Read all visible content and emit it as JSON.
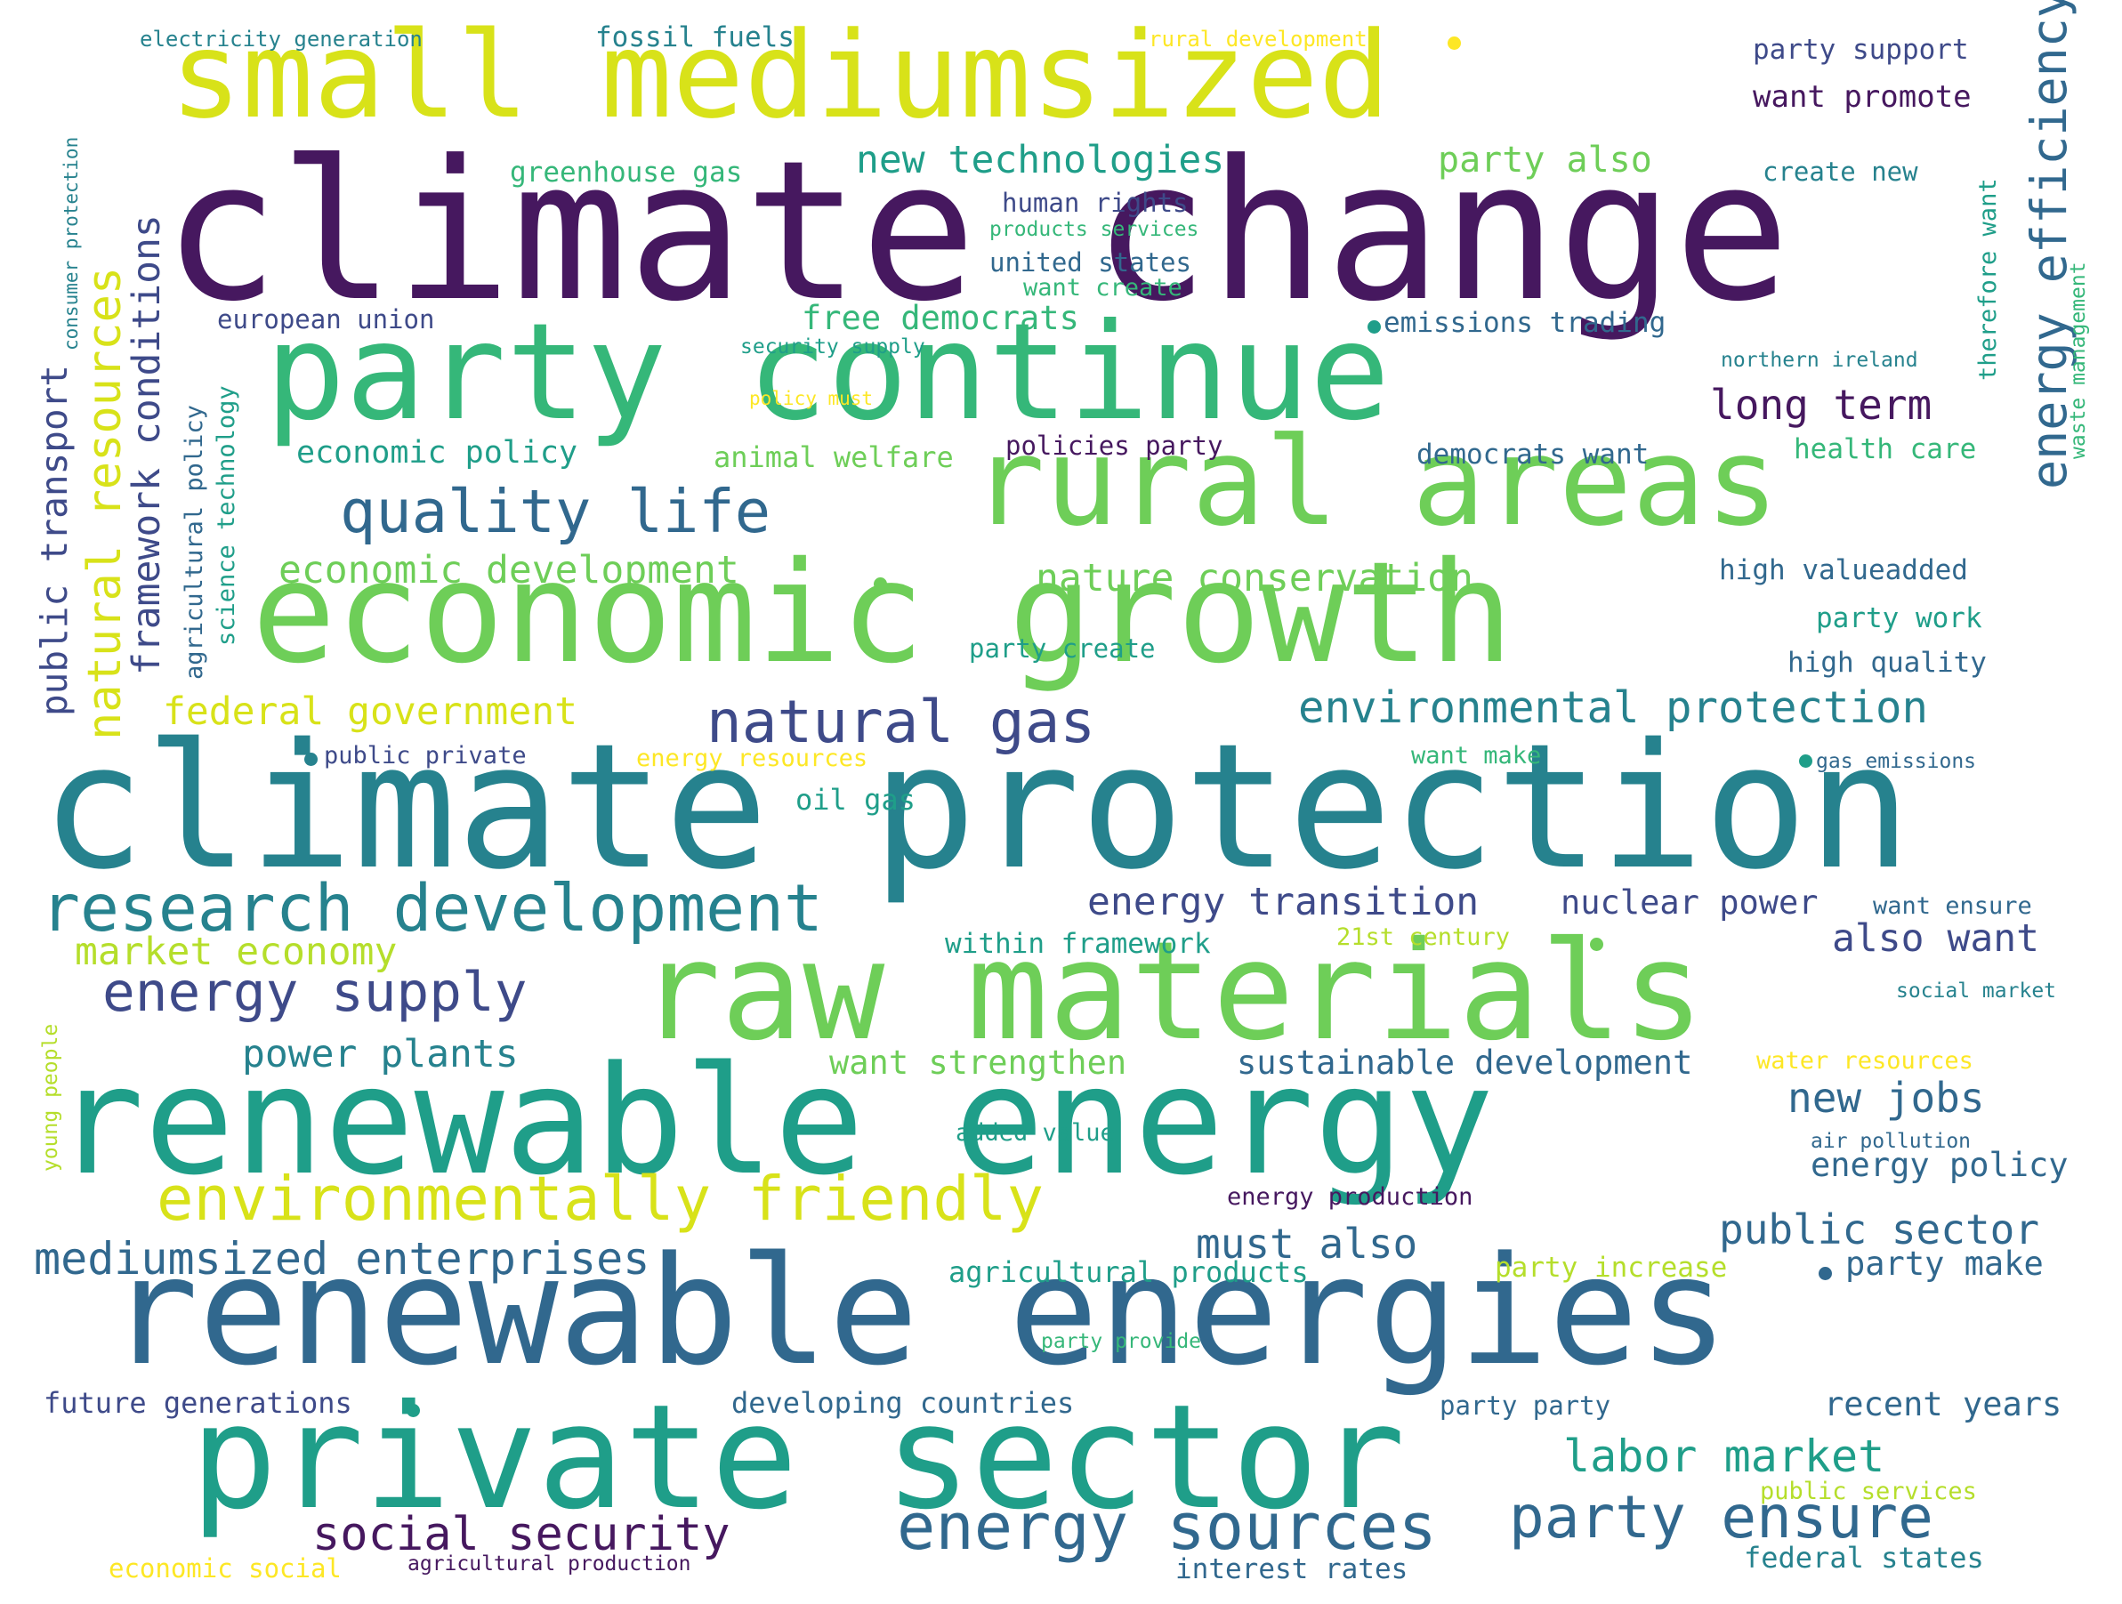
{
  "palette": {
    "dark_purple": "#46185f",
    "indigo": "#3e4a89",
    "blue": "#31688e",
    "teal": "#26828e",
    "sea_green": "#1f9e89",
    "green": "#35b779",
    "light_green": "#6ece58",
    "lime": "#b5de2b",
    "yellow_green": "#d8e219",
    "yellow": "#fde725"
  },
  "words": [
    "climate change",
    "climate protection",
    "renewable energies",
    "renewable energy",
    "private sector",
    "raw materials",
    "economic growth",
    "party continue",
    "rural areas",
    "small mediumsized",
    "environmentally friendly",
    "research development",
    "energy sources",
    "quality life",
    "natural gas",
    "party ensure",
    "energy supply",
    "social security",
    "labor market",
    "mediumsized enterprises",
    "natural resources",
    "energy efficiency",
    "environmental protection",
    "new technologies",
    "federal government",
    "economic development",
    "power plants",
    "must also",
    "new jobs",
    "public sector",
    "long term",
    "energy transition",
    "market economy",
    "framework conditions",
    "public transport",
    "sustainable development",
    "nuclear power",
    "also want",
    "nature conservation",
    "economic policy",
    "want strengthen",
    "free democrats",
    "party also",
    "recent years",
    "future generations",
    "developing countries",
    "energy policy",
    "party make",
    "federal states",
    "want promote",
    "agricultural products",
    "party support",
    "greenhouse gas",
    "european union",
    "fossil fuels",
    "within framework",
    "oil gas",
    "emissions trading",
    "animal welfare",
    "policies party",
    "democrats want",
    "health care",
    "high valueadded",
    "high quality",
    "party work",
    "party increase",
    "interest rates",
    "want ensure",
    "united states",
    "human rights",
    "create new",
    "agricultural policy",
    "science technology",
    "public private",
    "energy production",
    "party create",
    "want create",
    "21st century",
    "energy resources",
    "want make",
    "electricity generation",
    "rural development",
    "public services",
    "economic social",
    "added value",
    "northern ireland",
    "party provide",
    "air pollution",
    "water resources",
    "products services",
    "therefore want",
    "waste management",
    "consumer protection",
    "young people",
    "policy must",
    "party party",
    "agricultural production",
    "social market",
    "gas emissions",
    "security supply"
  ]
}
